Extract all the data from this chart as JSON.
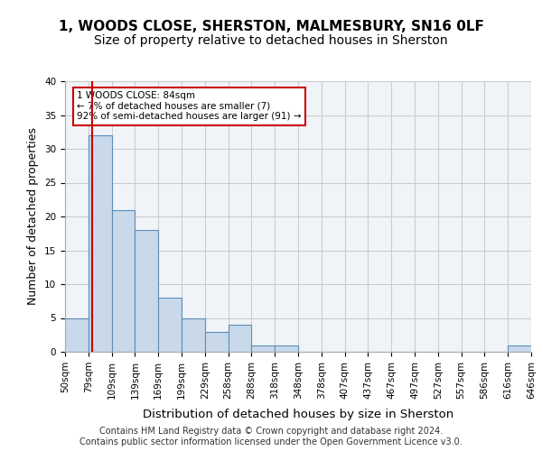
{
  "title_line1": "1, WOODS CLOSE, SHERSTON, MALMESBURY, SN16 0LF",
  "title_line2": "Size of property relative to detached houses in Sherston",
  "xlabel": "Distribution of detached houses by size in Sherston",
  "ylabel": "Number of detached properties",
  "footer_line1": "Contains HM Land Registry data © Crown copyright and database right 2024.",
  "footer_line2": "Contains public sector information licensed under the Open Government Licence v3.0.",
  "bins": [
    "50sqm",
    "79sqm",
    "109sqm",
    "139sqm",
    "169sqm",
    "199sqm",
    "229sqm",
    "258sqm",
    "288sqm",
    "318sqm",
    "348sqm",
    "378sqm",
    "407sqm",
    "437sqm",
    "467sqm",
    "497sqm",
    "527sqm",
    "557sqm",
    "586sqm",
    "616sqm",
    "646sqm"
  ],
  "bar_heights": [
    5,
    32,
    21,
    18,
    8,
    5,
    3,
    4,
    1,
    1,
    0,
    0,
    0,
    0,
    0,
    0,
    0,
    0,
    0,
    1,
    0
  ],
  "bar_color": "#c9d9ea",
  "bar_edgecolor": "#5b8db8",
  "annotation_text": "1 WOODS CLOSE: 84sqm\n← 7% of detached houses are smaller (7)\n92% of semi-detached houses are larger (91) →",
  "annotation_box_edgecolor": "#cc0000",
  "vline_x": 84,
  "vline_color": "#cc0000",
  "ylim": [
    0,
    40
  ],
  "yticks": [
    0,
    5,
    10,
    15,
    20,
    25,
    30,
    35,
    40
  ],
  "grid_color": "#cccccc",
  "background_color": "#f0f4f8",
  "title_fontsize": 11,
  "subtitle_fontsize": 10,
  "axis_label_fontsize": 9,
  "tick_fontsize": 7.5,
  "footer_fontsize": 7
}
